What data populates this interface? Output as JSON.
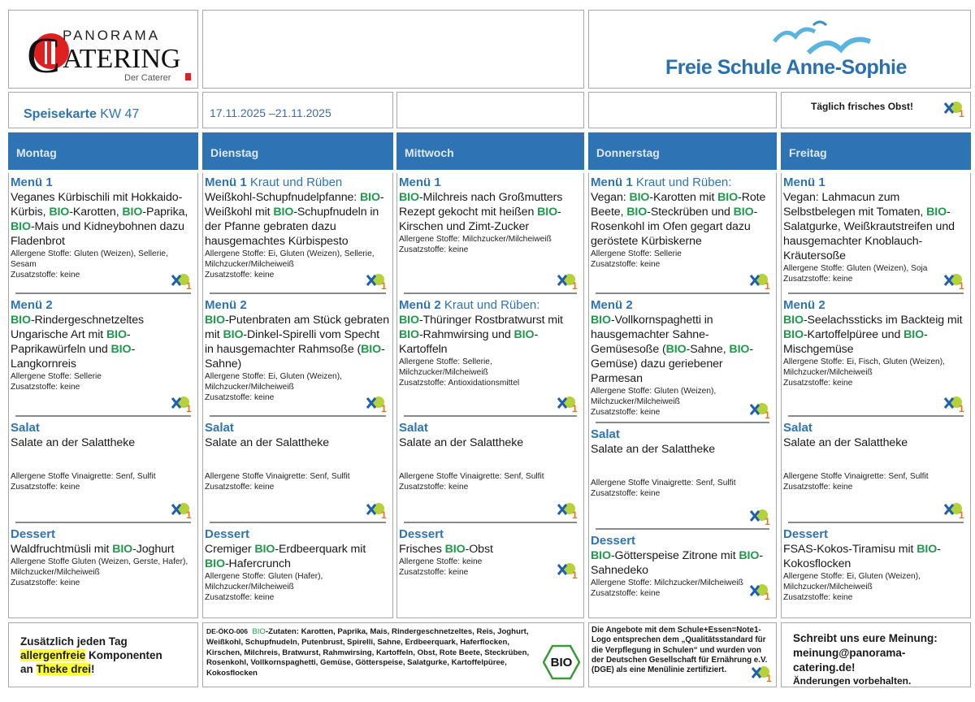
{
  "header": {
    "logo": {
      "line1": "PANORAMA",
      "line2": "ATERING",
      "initial": "C",
      "tagline": "Der Caterer"
    },
    "school": "Freie Schule Anne-Sophie",
    "menu_label": "Speisekarte",
    "week": "KW 47",
    "date_range": "17.11.2025 –21.11.2025",
    "fruit_note": "Täglich frisches Obst!"
  },
  "colors": {
    "accent": "#2e74b5",
    "bio": "#1e9a4a",
    "highlight": "#ffff33"
  },
  "days": [
    {
      "name": "Montag",
      "menu1": {
        "title": "Menü 1",
        "sub": "",
        "desc": "Veganes Kürbischili mit Hokkaido-Kürbis, BIO-Karotten, BIO-Paprika, BIO-Mais und Kidneybohnen dazu Fladenbrot",
        "allergens": "Allergene Stoffe: Gluten (Weizen), Sellerie, Sesam",
        "additives": "Zusatzstoffe: keine"
      },
      "menu2": {
        "title": "Menü 2",
        "sub": "",
        "desc": "BIO-Rindergeschnetzeltes Ungarische Art mit BIO-Paprikawürfeln und BIO-Langkornreis",
        "allergens": "Allergene Stoffe: Sellerie",
        "additives": "Zusatzstoffe: keine"
      },
      "salad": {
        "title": "Salat",
        "desc": "Salate an der Salattheke",
        "allergens": "Allergene Stoffe Vinaigrette: Senf, Sulfit",
        "additives": "Zusatzstoffe: keine"
      },
      "dessert": {
        "title": "Dessert",
        "desc": "Waldfruchtmüsli mit BIO-Joghurt",
        "allergens": "Allergene Stoffe Gluten (Weizen, Gerste, Hafer), Milchzucker/Milcheiweiß",
        "additives": "Zusatzstoffe: keine"
      }
    },
    {
      "name": "Dienstag",
      "menu1": {
        "title": "Menü 1",
        "sub": "Kraut und Rüben",
        "desc": "Weißkohl-Schupfnudelpfanne: BIO-Weißkohl mit BIO-Schupfnudeln in der Pfanne gebraten dazu hausgemachtes Kürbispesto",
        "allergens": "Allergene Stoffe: Ei, Gluten (Weizen), Sellerie, Milchzucker/Milcheiweiß",
        "additives": "Zusatzstoffe: keine"
      },
      "menu2": {
        "title": "Menü 2",
        "sub": "",
        "desc": "BIO-Putenbraten am Stück gebraten mit BIO-Dinkel-Spirelli vom Specht in hausgemachter Rahmsoße (BIO-Sahne)",
        "allergens": "Allergene Stoffe: Ei, Gluten (Weizen), Milchzucker/Milcheiweiß",
        "additives": "Zusatzstoffe: keine"
      },
      "salad": {
        "title": "Salat",
        "desc": "Salate an der Salattheke",
        "allergens": "Allergene Stoffe Vinaigrette: Senf, Sulfit",
        "additives": "Zusatzstoffe: keine"
      },
      "dessert": {
        "title": "Dessert",
        "desc": "Cremiger BIO-Erdbeerquark mit BIO-Hafercrunch",
        "allergens": "Allergene Stoffe: Gluten (Hafer), Milchzucker/Milcheiweiß",
        "additives": "Zusatzstoffe: keine"
      }
    },
    {
      "name": "Mittwoch",
      "menu1": {
        "title": "Menü 1",
        "sub": "",
        "desc": "BIO-Milchreis nach Großmutters Rezept gekocht mit heißen BIO-Kirschen und Zimt-Zucker",
        "allergens": "Allergene Stoffe: Milchzucker/Milcheiweiß",
        "additives": "Zusatzstoffe: keine"
      },
      "menu2": {
        "title": "Menü 2",
        "sub": "Kraut und Rüben:",
        "desc": "BIO-Thüringer Rostbratwurst mit BIO-Rahmwirsing und BIO-Kartoffeln",
        "allergens": "Allergene Stoffe: Sellerie, Milchzucker/Milcheiweiß",
        "additives": "Zusatzstoffe: Antioxidationsmittel"
      },
      "salad": {
        "title": "Salat",
        "desc": "Salate an der Salattheke",
        "allergens": "Allergene Stoffe Vinaigrette: Senf, Sulfit",
        "additives": "Zusatzstoffe: keine"
      },
      "dessert": {
        "title": "Dessert",
        "desc": "Frisches BIO-Obst",
        "allergens": "Allergene Stoffe: keine",
        "additives": "Zusatzstoffe: keine"
      }
    },
    {
      "name": "Donnerstag",
      "menu1": {
        "title": "Menü 1",
        "sub": "Kraut und Rüben:",
        "desc": "Vegan: BIO-Karotten mit BIO-Rote Beete, BIO-Steckrüben und BIO-Rosenkohl im Ofen gegart dazu geröstete Kürbiskerne",
        "allergens": "Allergene Stoffe: Sellerie",
        "additives": "Zusatzstoffe: keine"
      },
      "menu2": {
        "title": "Menü 2",
        "sub": "",
        "desc": "BIO-Vollkornspaghetti in hausgemachter Sahne-Gemüsesoße (BIO-Sahne, BIO-Gemüse) dazu geriebener Parmesan",
        "allergens": "Allergene Stoffe: Gluten (Weizen), Milchzucker/Milcheiweiß",
        "additives": "Zusatzstoffe: keine"
      },
      "salad": {
        "title": "Salat",
        "desc": "Salate an der Salattheke",
        "allergens": "Allergene Stoffe Vinaigrette: Senf, Sulfit",
        "additives": "Zusatzstoffe: keine"
      },
      "dessert": {
        "title": "Dessert",
        "desc": "BIO-Götterspeise Zitrone mit BIO-Sahnedeko",
        "allergens": "Allergene Stoffe: Milchzucker/Milcheiweiß",
        "additives": "Zusatzstoffe: keine"
      }
    },
    {
      "name": "Freitag",
      "menu1": {
        "title": "Menü 1",
        "sub": "",
        "desc": "Vegan: Lahmacun zum Selbstbelegen mit Tomaten, BIO-Salatgurke, Weißkrautstreifen und hausgemachter Knoblauch-Kräutersoße",
        "allergens": "Allergene Stoffe: Gluten (Weizen), Soja",
        "additives": "Zusatzstoffe: keine"
      },
      "menu2": {
        "title": "Menü 2",
        "sub": "",
        "desc": "BIO-Seelachssticks im Backteig mit BIO-Kartoffelpüree und BIO-Mischgemüse",
        "allergens": "Allergene Stoffe: Ei, Fisch, Gluten (Weizen), Milchzucker/Milcheiweiß",
        "additives": "Zusatzstoffe: keine"
      },
      "salad": {
        "title": "Salat",
        "desc": "Salate an der Salattheke",
        "allergens": "Allergene Stoffe Vinaigrette: Senf, Sulfit",
        "additives": "Zusatzstoffe: keine"
      },
      "dessert": {
        "title": "Dessert",
        "desc": "FSAS-Kokos-Tiramisu mit BIO-Kokosflocken",
        "allergens": "Allergene Stoffe: Ei, Gluten (Weizen), Milchzucker/Milcheiweiß",
        "additives": "Zusatzstoffe: keine"
      }
    }
  ],
  "footer": {
    "daily_line1": "Zusätzlich jeden Tag",
    "daily_hl1": "allergenfreie",
    "daily_line2": " Komponenten",
    "daily_line3a": "an ",
    "daily_hl2": "Theke drei",
    "daily_line3b": "!",
    "bio_code": "DE-ÖKO-006",
    "bio_word": "BIO",
    "bio_ingredients": "-Zutaten: Karotten, Paprika, Mais, Rindergeschnetzeltes, Reis, Joghurt, Weißkohl, Schupfnudeln, Putenbrust, Spirelli, Sahne, Erdbeerquark, Haferflocken, Kirschen, Milchreis, Bratwurst, Rahmwirsing, Kartoffeln, Obst, Rote Beete, Steckrüben, Rosenkohl, Vollkornspaghetti, Gemüse, Götterspeise, Salatgurke, Kartoffelpüree, Kokosflocken",
    "bio_seal": "BIO",
    "dge_note": "Die Angebote mit dem Schule+Essen=Note1-Logo entsprechen dem „Qualitätsstandard für die Verpflegung in Schulen“ und wurden von der Deutschen Gesellschaft für Ernährung e.V. (DGE) als eine Menülinie zertifiziert.",
    "feedback": "Schreibt uns eure Meinung: meinung@panorama-catering.de!",
    "disclaimer": "Änderungen vorbehalten."
  }
}
